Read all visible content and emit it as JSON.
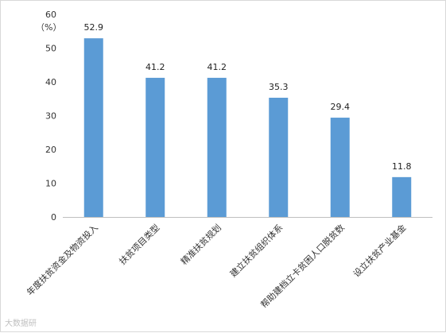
{
  "chart_data": {
    "type": "bar",
    "unit_label": "（%）",
    "categories": [
      "年度扶贫资金及物资投入",
      "扶贫项目类型",
      "精准扶贫规划",
      "建立扶贫组织体系",
      "帮助建档立卡贫困人口脱贫数",
      "设立扶贫产业基金"
    ],
    "values": [
      52.9,
      41.2,
      41.2,
      35.3,
      29.4,
      11.8
    ],
    "ylim": [
      0,
      60
    ],
    "yticks": [
      0,
      10,
      20,
      30,
      40,
      50,
      60
    ],
    "grid": false,
    "legend": "none",
    "bar_color": "#5b9bd5"
  },
  "watermark": "大数据研"
}
